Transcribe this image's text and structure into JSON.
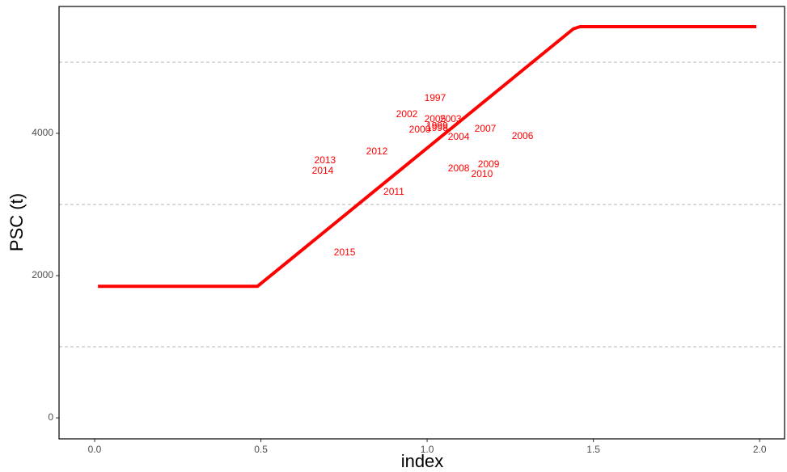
{
  "chart_data": {
    "type": "line",
    "x_label": "index",
    "y_label": "PSC (t)",
    "xlim": [
      -0.107,
      2.075
    ],
    "ylim": [
      -295,
      5784
    ],
    "xticks": [
      {
        "value": 0,
        "label": "0.0"
      },
      0.5,
      {
        "value": 1,
        "label": "1.0"
      },
      1.5,
      {
        "value": 2,
        "label": "2.0"
      }
    ],
    "yticks": [
      0,
      2000,
      4000
    ],
    "grid_lines": [
      1000,
      3000,
      5000
    ],
    "series": [
      {
        "color": "#ff0000",
        "x": [
          0.01,
          0.49,
          1.44,
          1.46,
          1.99
        ],
        "values": [
          1850,
          1850,
          5470,
          5500,
          5500
        ]
      }
    ],
    "labels_color": "#ff0000",
    "labels": [
      {
        "text": "1997",
        "x": 1.024,
        "y": 4489
      },
      {
        "text": "2002",
        "x": 0.939,
        "y": 4261
      },
      {
        "text": "2005",
        "x": 1.024,
        "y": 4193
      },
      {
        "text": "2003",
        "x": 1.071,
        "y": 4193
      },
      {
        "text": "1999",
        "x": 1.03,
        "y": 4100
      },
      {
        "text": "1998",
        "x": 1.03,
        "y": 4070
      },
      {
        "text": "2000",
        "x": 0.978,
        "y": 4045
      },
      {
        "text": "2004",
        "x": 1.095,
        "y": 3943
      },
      {
        "text": "2007",
        "x": 1.175,
        "y": 4057
      },
      {
        "text": "2006",
        "x": 1.287,
        "y": 3955
      },
      {
        "text": "2012",
        "x": 0.849,
        "y": 3739
      },
      {
        "text": "2013",
        "x": 0.693,
        "y": 3614
      },
      {
        "text": "2014",
        "x": 0.686,
        "y": 3466
      },
      {
        "text": "2011",
        "x": 0.9,
        "y": 3170
      },
      {
        "text": "2008",
        "x": 1.095,
        "y": 3500
      },
      {
        "text": "2009",
        "x": 1.185,
        "y": 3557
      },
      {
        "text": "2010",
        "x": 1.165,
        "y": 3420
      },
      {
        "text": "2015",
        "x": 0.752,
        "y": 2318
      }
    ]
  }
}
